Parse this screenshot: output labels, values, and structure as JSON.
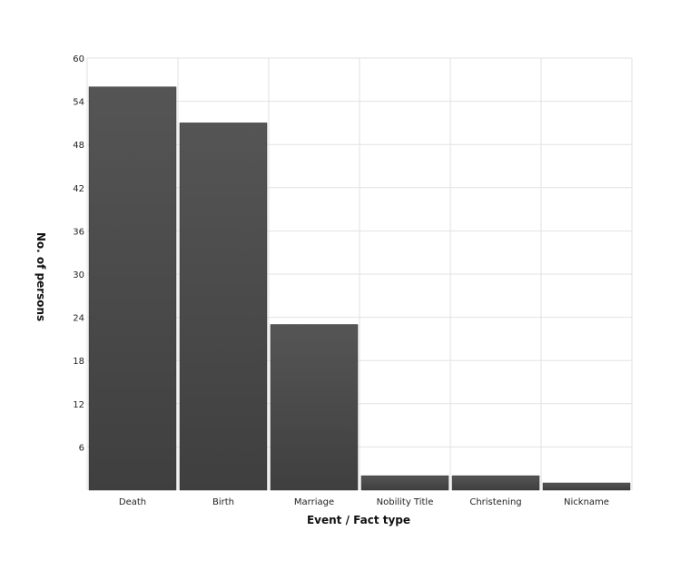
{
  "chart_data": {
    "type": "bar",
    "categories": [
      "Death",
      "Birth",
      "Marriage",
      "Nobility Title",
      "Christening",
      "Nickname"
    ],
    "values": [
      56,
      51,
      23,
      2,
      2,
      1
    ],
    "xlabel": "Event / Fact type",
    "ylabel": "No. of persons",
    "ylim": [
      0,
      60
    ],
    "yticks": [
      6,
      12,
      18,
      24,
      30,
      36,
      42,
      48,
      54,
      60
    ],
    "grid": true,
    "bar_color": "#4a4a4a"
  }
}
